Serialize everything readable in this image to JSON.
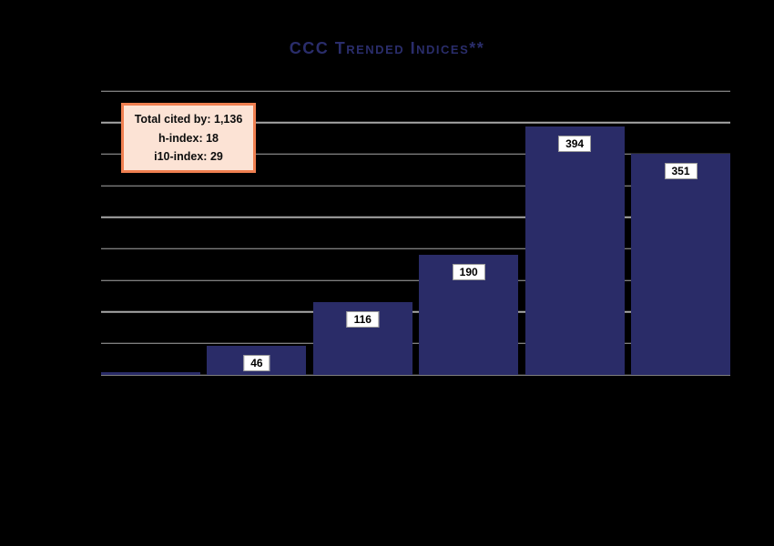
{
  "chart_data": {
    "type": "bar",
    "title": "CCC Trended Indices**",
    "categories": [
      "",
      "",
      "",
      "",
      "",
      ""
    ],
    "values": [
      4,
      46,
      116,
      190,
      394,
      351
    ],
    "bar_labels": [
      "",
      "46",
      "116",
      "190",
      "394",
      "351"
    ],
    "xlabel": "",
    "ylabel": "",
    "ylim": [
      0,
      450
    ],
    "gridline_step": 50,
    "grid": true,
    "legend": false
  },
  "annotation": {
    "lines": [
      "Total cited by: 1,136",
      "h-index: 18",
      "i10-index: 29"
    ]
  },
  "colors": {
    "background": "#000000",
    "bar": "#2a2c68",
    "title": "#2a2d6b",
    "gridline": "#a8a8a8",
    "value_label_bg": "#ffffff",
    "value_label_text": "#000000",
    "annotation_bg": "#fce3d5",
    "annotation_border": "#ef7f50",
    "annotation_text": "#0d0d0d"
  }
}
